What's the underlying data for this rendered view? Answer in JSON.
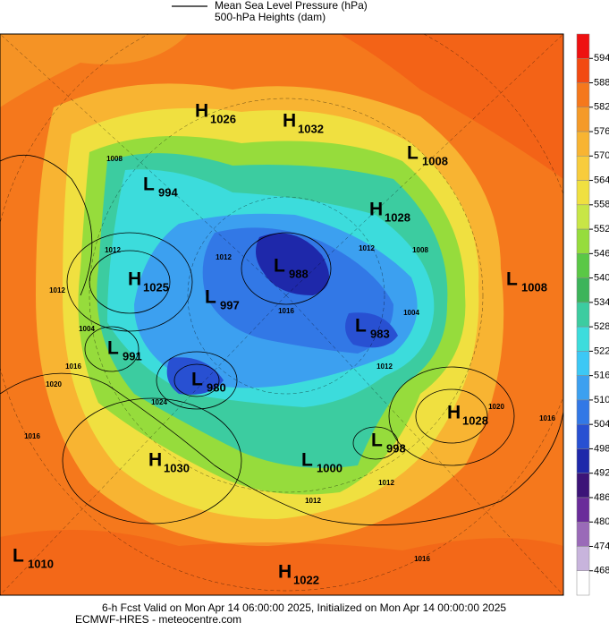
{
  "legend": {
    "line_label": "Mean Sea Level Pressure (hPa)",
    "fill_label": "500-hPa Heights (dam)"
  },
  "colorbar": {
    "ticks": [
      594,
      588,
      582,
      576,
      570,
      564,
      558,
      552,
      546,
      540,
      534,
      528,
      522,
      516,
      510,
      504,
      498,
      492,
      486,
      480,
      474,
      468
    ],
    "colors": [
      "#ee1111",
      "#f24a12",
      "#f5781c",
      "#f59a28",
      "#f8b432",
      "#f8cc3c",
      "#f0e040",
      "#c8e646",
      "#96dc3c",
      "#5ac846",
      "#3cb45a",
      "#3ccca0",
      "#3cdcdc",
      "#3cc8f5",
      "#3ca0f0",
      "#3278e6",
      "#2850d2",
      "#1e28aa",
      "#3c1478",
      "#6a2c9a",
      "#9a6ab8",
      "#c8b4dc",
      "#ffffff"
    ]
  },
  "centers": [
    {
      "letter": "H",
      "value": "1026"
    },
    {
      "letter": "H",
      "value": "1032"
    },
    {
      "letter": "L",
      "value": "1008"
    },
    {
      "letter": "L",
      "value": "994"
    },
    {
      "letter": "H",
      "value": "1028"
    },
    {
      "letter": "L",
      "value": "988"
    },
    {
      "letter": "H",
      "value": "1025"
    },
    {
      "letter": "L",
      "value": "997"
    },
    {
      "letter": "L",
      "value": "1008"
    },
    {
      "letter": "L",
      "value": "983"
    },
    {
      "letter": "L",
      "value": "991"
    },
    {
      "letter": "L",
      "value": "980"
    },
    {
      "letter": "H",
      "value": "1028"
    },
    {
      "letter": "L",
      "value": "998"
    },
    {
      "letter": "H",
      "value": "1030"
    },
    {
      "letter": "L",
      "value": "1000"
    },
    {
      "letter": "L",
      "value": "1010"
    },
    {
      "letter": "H",
      "value": "1022"
    }
  ],
  "contour_labels": [
    "1008",
    "1012",
    "1012",
    "1004",
    "1016",
    "1020",
    "1024",
    "1016",
    "1012",
    "1012",
    "1008",
    "1004",
    "1016",
    "1012",
    "1012",
    "1020",
    "1016",
    "1016",
    "1012"
  ],
  "footer": {
    "line1": "6-h Fcst Valid on Mon Apr 14 06:00:00 2025, Initialized on Mon Apr 14 00:00:00 2025",
    "line2": "ECMWF-HRES  - meteocentre.com"
  }
}
